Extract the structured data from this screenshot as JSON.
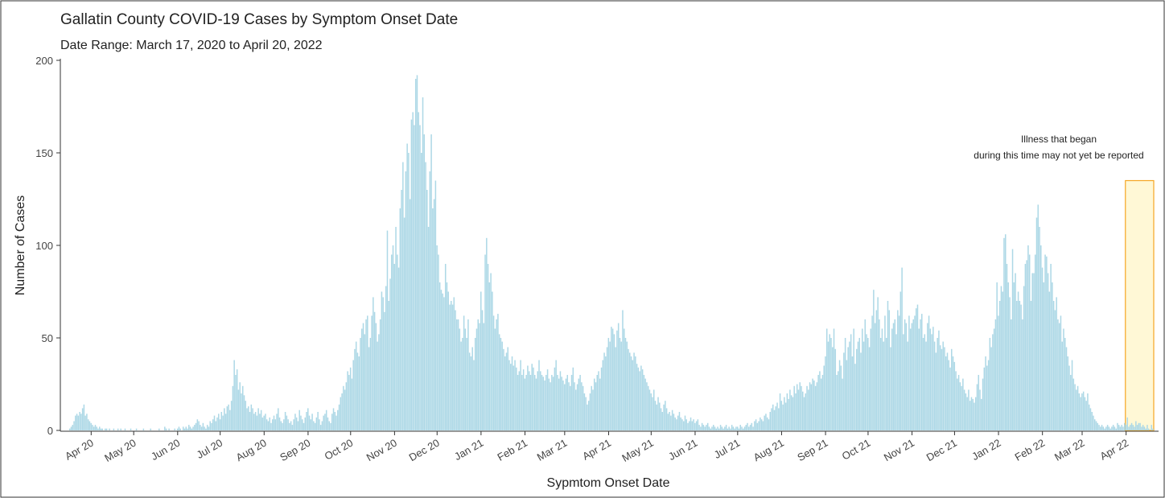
{
  "chart_data": {
    "type": "bar",
    "title": "Gallatin County COVID-19 Cases by Symptom Onset Date",
    "subtitle": "Date Range: March 17, 2020 to April 20, 2022",
    "x_label": "Sypmtom Onset Date",
    "y_label": "Number of Cases",
    "color": "#add8e6",
    "ylim": [
      0,
      200
    ],
    "yticks": [
      0,
      50,
      100,
      150,
      200
    ],
    "grid": false,
    "annotation": {
      "lines": [
        "Illness that began",
        "during this time may not yet be reported"
      ],
      "ymax": 135,
      "fill": "#fff8d6",
      "stroke": "#f5a623"
    },
    "categories": [
      null,
      null,
      null,
      null,
      null,
      null,
      null,
      null,
      null,
      null,
      null,
      null,
      null,
      null,
      null,
      "Apr 20",
      null,
      null,
      null,
      null,
      null,
      null,
      null,
      null,
      null,
      null,
      null,
      null,
      null,
      null,
      null,
      null,
      null,
      null,
      null,
      null,
      null,
      null,
      null,
      null,
      null,
      null,
      null,
      null,
      null,
      "May 20",
      null,
      null,
      null,
      null,
      null,
      null,
      null,
      null,
      null,
      null,
      null,
      null,
      null,
      null,
      null,
      null,
      null,
      null,
      null,
      null,
      null,
      null,
      null,
      null,
      null,
      null,
      null,
      null,
      null,
      null,
      "Jun 20",
      null,
      null,
      null,
      null,
      null,
      null,
      null,
      null,
      null,
      null,
      null,
      null,
      null,
      null,
      null,
      null,
      null,
      null,
      null,
      null,
      null,
      null,
      null,
      null,
      null,
      null,
      null,
      null,
      null,
      "Jul 20",
      null,
      null,
      null,
      null,
      null,
      null,
      null,
      null,
      null,
      null,
      null,
      null,
      null,
      null,
      null,
      null,
      null,
      null,
      null,
      null,
      null,
      null,
      null,
      null,
      null,
      null,
      null,
      null,
      null,
      null,
      "Aug 20",
      null,
      null,
      null,
      null,
      null,
      null,
      null,
      null,
      null,
      null,
      null,
      null,
      null,
      null,
      null,
      null,
      null,
      null,
      null,
      null,
      null,
      null,
      null,
      null,
      null,
      null,
      null,
      null,
      null,
      null,
      "Sep 20",
      null,
      null,
      null,
      null,
      null,
      null,
      null,
      null,
      null,
      null,
      null,
      null,
      null,
      null,
      null,
      null,
      null,
      null,
      null,
      null,
      null,
      null,
      null,
      null,
      null,
      null,
      null,
      null,
      null,
      "Oct 20",
      null,
      null,
      null,
      null,
      null,
      null,
      null,
      null,
      null,
      null,
      null,
      null,
      null,
      null,
      null,
      null,
      null,
      null,
      null,
      null,
      null,
      null,
      null,
      null,
      null,
      null,
      null,
      null,
      null,
      null,
      "Nov 20",
      null,
      null,
      null,
      null,
      null,
      null,
      null,
      null,
      null,
      null,
      null,
      null,
      null,
      null,
      null,
      null,
      null,
      null,
      null,
      null,
      null,
      null,
      null,
      null,
      null,
      null,
      null,
      null,
      null,
      "Dec 20",
      null,
      null,
      null,
      null,
      null,
      null,
      null,
      null,
      null,
      null,
      null,
      null,
      null,
      null,
      null,
      null,
      null,
      null,
      null,
      null,
      null,
      null,
      null,
      null,
      null,
      null,
      null,
      null,
      null,
      null,
      "Jan 21",
      null,
      null,
      null,
      null,
      null,
      null,
      null,
      null,
      null,
      null,
      null,
      null,
      null,
      null,
      null,
      null,
      null,
      null,
      null,
      null,
      null,
      null,
      null,
      null,
      null,
      null,
      null,
      null,
      null,
      null,
      "Feb 21",
      null,
      null,
      null,
      null,
      null,
      null,
      null,
      null,
      null,
      null,
      null,
      null,
      null,
      null,
      null,
      null,
      null,
      null,
      null,
      null,
      null,
      null,
      null,
      null,
      null,
      null,
      null,
      "Mar 21",
      null,
      null,
      null,
      null,
      null,
      null,
      null,
      null,
      null,
      null,
      null,
      null,
      null,
      null,
      null,
      null,
      null,
      null,
      null,
      null,
      null,
      null,
      null,
      null,
      null,
      null,
      null,
      null,
      null,
      null,
      "Apr 21",
      null,
      null,
      null,
      null,
      null,
      null,
      null,
      null,
      null,
      null,
      null,
      null,
      null,
      null,
      null,
      null,
      null,
      null,
      null,
      null,
      null,
      null,
      null,
      null,
      null,
      null,
      null,
      null,
      null,
      "May 21",
      null,
      null,
      null,
      null,
      null,
      null,
      null,
      null,
      null,
      null,
      null,
      null,
      null,
      null,
      null,
      null,
      null,
      null,
      null,
      null,
      null,
      null,
      null,
      null,
      null,
      null,
      null,
      null,
      null,
      null,
      "Jun 21",
      null,
      null,
      null,
      null,
      null,
      null,
      null,
      null,
      null,
      null,
      null,
      null,
      null,
      null,
      null,
      null,
      null,
      null,
      null,
      null,
      null,
      null,
      null,
      null,
      null,
      null,
      null,
      null,
      null,
      "Jul 21",
      null,
      null,
      null,
      null,
      null,
      null,
      null,
      null,
      null,
      null,
      null,
      null,
      null,
      null,
      null,
      null,
      null,
      null,
      null,
      null,
      null,
      null,
      null,
      null,
      null,
      null,
      null,
      null,
      null,
      null,
      "Aug 21",
      null,
      null,
      null,
      null,
      null,
      null,
      null,
      null,
      null,
      null,
      null,
      null,
      null,
      null,
      null,
      null,
      null,
      null,
      null,
      null,
      null,
      null,
      null,
      null,
      null,
      null,
      null,
      null,
      null,
      null,
      "Sep 21",
      null,
      null,
      null,
      null,
      null,
      null,
      null,
      null,
      null,
      null,
      null,
      null,
      null,
      null,
      null,
      null,
      null,
      null,
      null,
      null,
      null,
      null,
      null,
      null,
      null,
      null,
      null,
      null,
      null,
      "Oct 21",
      null,
      null,
      null,
      null,
      null,
      null,
      null,
      null,
      null,
      null,
      null,
      null,
      null,
      null,
      null,
      null,
      null,
      null,
      null,
      null,
      null,
      null,
      null,
      null,
      null,
      null,
      null,
      null,
      null,
      null,
      "Nov 21",
      null,
      null,
      null,
      null,
      null,
      null,
      null,
      null,
      null,
      null,
      null,
      null,
      null,
      null,
      null,
      null,
      null,
      null,
      null,
      null,
      null,
      null,
      null,
      null,
      null,
      null,
      null,
      null,
      null,
      "Dec 21",
      null,
      null,
      null,
      null,
      null,
      null,
      null,
      null,
      null,
      null,
      null,
      null,
      null,
      null,
      null,
      null,
      null,
      null,
      null,
      null,
      null,
      null,
      null,
      null,
      null,
      null,
      null,
      null,
      null,
      null,
      "Jan 22",
      null,
      null,
      null,
      null,
      null,
      null,
      null,
      null,
      null,
      null,
      null,
      null,
      null,
      null,
      null,
      null,
      null,
      null,
      null,
      null,
      null,
      null,
      null,
      null,
      null,
      null,
      null,
      null,
      null,
      null,
      "Feb 22",
      null,
      null,
      null,
      null,
      null,
      null,
      null,
      null,
      null,
      null,
      null,
      null,
      null,
      null,
      null,
      null,
      null,
      null,
      null,
      null,
      null,
      null,
      null,
      null,
      null,
      null,
      null,
      "Mar 22",
      null,
      null,
      null,
      null,
      null,
      null,
      null,
      null,
      null,
      null,
      null,
      null,
      null,
      null,
      null,
      null,
      null,
      null,
      null,
      null,
      null,
      null,
      null,
      null,
      null,
      null,
      null,
      null,
      null,
      null,
      "Apr 22",
      null,
      null,
      null,
      null,
      null,
      null,
      null,
      null,
      null,
      null,
      null,
      null,
      null,
      null,
      null,
      null,
      null,
      null,
      null
    ],
    "values": [
      1,
      2,
      3,
      5,
      8,
      9,
      8,
      10,
      9,
      12,
      14,
      8,
      9,
      6,
      5,
      4,
      3,
      2,
      3,
      2,
      1,
      2,
      1,
      1,
      0,
      1,
      1,
      0,
      1,
      0,
      0,
      1,
      0,
      0,
      1,
      0,
      1,
      0,
      0,
      1,
      0,
      0,
      0,
      1,
      0,
      0,
      0,
      1,
      0,
      0,
      0,
      0,
      1,
      0,
      0,
      0,
      0,
      1,
      0,
      0,
      0,
      0,
      0,
      1,
      0,
      0,
      0,
      2,
      1,
      0,
      1,
      0,
      0,
      0,
      1,
      0,
      1,
      2,
      1,
      0,
      2,
      1,
      2,
      1,
      3,
      2,
      1,
      2,
      3,
      4,
      6,
      5,
      3,
      2,
      4,
      2,
      1,
      3,
      2,
      5,
      4,
      6,
      8,
      5,
      7,
      9,
      6,
      10,
      8,
      12,
      9,
      13,
      14,
      11,
      16,
      24,
      38,
      30,
      33,
      22,
      26,
      20,
      24,
      19,
      16,
      12,
      13,
      10,
      14,
      12,
      9,
      10,
      8,
      12,
      9,
      11,
      7,
      8,
      9,
      6,
      5,
      7,
      4,
      6,
      8,
      6,
      9,
      12,
      7,
      5,
      4,
      6,
      10,
      8,
      6,
      4,
      5,
      3,
      6,
      9,
      7,
      5,
      11,
      8,
      6,
      4,
      7,
      10,
      12,
      8,
      6,
      9,
      5,
      4,
      7,
      10,
      6,
      3,
      5,
      8,
      9,
      11,
      7,
      5,
      4,
      9,
      12,
      10,
      8,
      11,
      14,
      18,
      20,
      24,
      22,
      26,
      32,
      30,
      34,
      28,
      38,
      44,
      48,
      42,
      40,
      50,
      55,
      58,
      52,
      60,
      62,
      45,
      50,
      62,
      72,
      64,
      58,
      48,
      52,
      60,
      75,
      72,
      64,
      78,
      108,
      70,
      82,
      95,
      100,
      90,
      110,
      95,
      88,
      120,
      130,
      145,
      115,
      140,
      155,
      150,
      125,
      168,
      172,
      165,
      190,
      192,
      172,
      165,
      150,
      180,
      160,
      145,
      130,
      110,
      140,
      160,
      120,
      125,
      135,
      100,
      95,
      80,
      76,
      74,
      72,
      90,
      80,
      75,
      68,
      70,
      68,
      72,
      65,
      60,
      60,
      55,
      48,
      50,
      62,
      55,
      50,
      60,
      42,
      40,
      45,
      38,
      50,
      55,
      60,
      58,
      75,
      65,
      58,
      95,
      104,
      90,
      80,
      85,
      75,
      62,
      55,
      60,
      63,
      52,
      50,
      48,
      44,
      40,
      42,
      45,
      38,
      36,
      40,
      35,
      38,
      34,
      30,
      32,
      38,
      30,
      33,
      28,
      30,
      35,
      32,
      30,
      36,
      34,
      30,
      28,
      32,
      38,
      32,
      30,
      29,
      27,
      30,
      33,
      28,
      26,
      30,
      29,
      34,
      38,
      30,
      28,
      32,
      29,
      27,
      25,
      28,
      30,
      26,
      24,
      30,
      34,
      26,
      22,
      25,
      28,
      30,
      26,
      24,
      20,
      18,
      14,
      16,
      20,
      24,
      22,
      28,
      26,
      30,
      32,
      28,
      34,
      38,
      42,
      40,
      45,
      50,
      48,
      56,
      55,
      52,
      45,
      54,
      58,
      50,
      48,
      65,
      55,
      50,
      48,
      44,
      42,
      40,
      38,
      42,
      40,
      36,
      34,
      32,
      35,
      33,
      30,
      28,
      26,
      24,
      22,
      20,
      18,
      22,
      16,
      14,
      18,
      15,
      12,
      10,
      14,
      16,
      12,
      9,
      10,
      8,
      11,
      9,
      7,
      6,
      8,
      10,
      7,
      6,
      5,
      8,
      6,
      4,
      5,
      7,
      5,
      6,
      4,
      5,
      6,
      3,
      2,
      4,
      3,
      2,
      3,
      4,
      2,
      1,
      2,
      3,
      2,
      1,
      2,
      1,
      3,
      2,
      1,
      2,
      3,
      1,
      2,
      1,
      3,
      2,
      1,
      2,
      2,
      1,
      3,
      2,
      1,
      2,
      3,
      4,
      2,
      3,
      4,
      2,
      5,
      6,
      4,
      5,
      7,
      6,
      5,
      8,
      9,
      7,
      6,
      10,
      12,
      14,
      11,
      13,
      15,
      12,
      20,
      16,
      14,
      18,
      15,
      20,
      17,
      22,
      19,
      18,
      24,
      20,
      25,
      22,
      26,
      24,
      21,
      18,
      20,
      24,
      22,
      26,
      25,
      28,
      27,
      24,
      26,
      30,
      32,
      28,
      30,
      35,
      40,
      55,
      48,
      52,
      50,
      45,
      55,
      44,
      30,
      32,
      38,
      35,
      28,
      42,
      50,
      38,
      45,
      48,
      52,
      40,
      55,
      36,
      44,
      48,
      50,
      42,
      55,
      48,
      60,
      52,
      50,
      45,
      55,
      62,
      76,
      58,
      65,
      72,
      60,
      50,
      55,
      48,
      62,
      50,
      70,
      65,
      45,
      55,
      58,
      60,
      52,
      65,
      62,
      75,
      88,
      52,
      60,
      58,
      48,
      62,
      55,
      58,
      60,
      62,
      66,
      68,
      55,
      60,
      63,
      50,
      52,
      48,
      58,
      62,
      55,
      52,
      56,
      48,
      42,
      50,
      54,
      46,
      44,
      48,
      45,
      40,
      42,
      38,
      34,
      44,
      40,
      37,
      32,
      28,
      30,
      26,
      24,
      28,
      22,
      20,
      18,
      22,
      16,
      18,
      17,
      15,
      18,
      25,
      30,
      22,
      17,
      28,
      34,
      40,
      35,
      38,
      50,
      45,
      52,
      55,
      60,
      80,
      62,
      70,
      78,
      75,
      104,
      106,
      90,
      80,
      72,
      60,
      98,
      80,
      85,
      70,
      75,
      70,
      68,
      60,
      78,
      90,
      92,
      100,
      95,
      70,
      85,
      85,
      95,
      115,
      122,
      110,
      100,
      88,
      80,
      95,
      94,
      85,
      75,
      90,
      80,
      70,
      65,
      72,
      60,
      58,
      62,
      48,
      55,
      50,
      45,
      40,
      35,
      30,
      38,
      28,
      25,
      22,
      24,
      20,
      18,
      20,
      21,
      18,
      16,
      20,
      14,
      12,
      10,
      8,
      6,
      5,
      4,
      3,
      2,
      3,
      2,
      1,
      2,
      3,
      2,
      1,
      2,
      3,
      2,
      1,
      4,
      3,
      2,
      3,
      2,
      4,
      3,
      7,
      2,
      3,
      4,
      3,
      2,
      5,
      3,
      4,
      4,
      2,
      3,
      2,
      1,
      3,
      1,
      0,
      3,
      1
    ]
  }
}
